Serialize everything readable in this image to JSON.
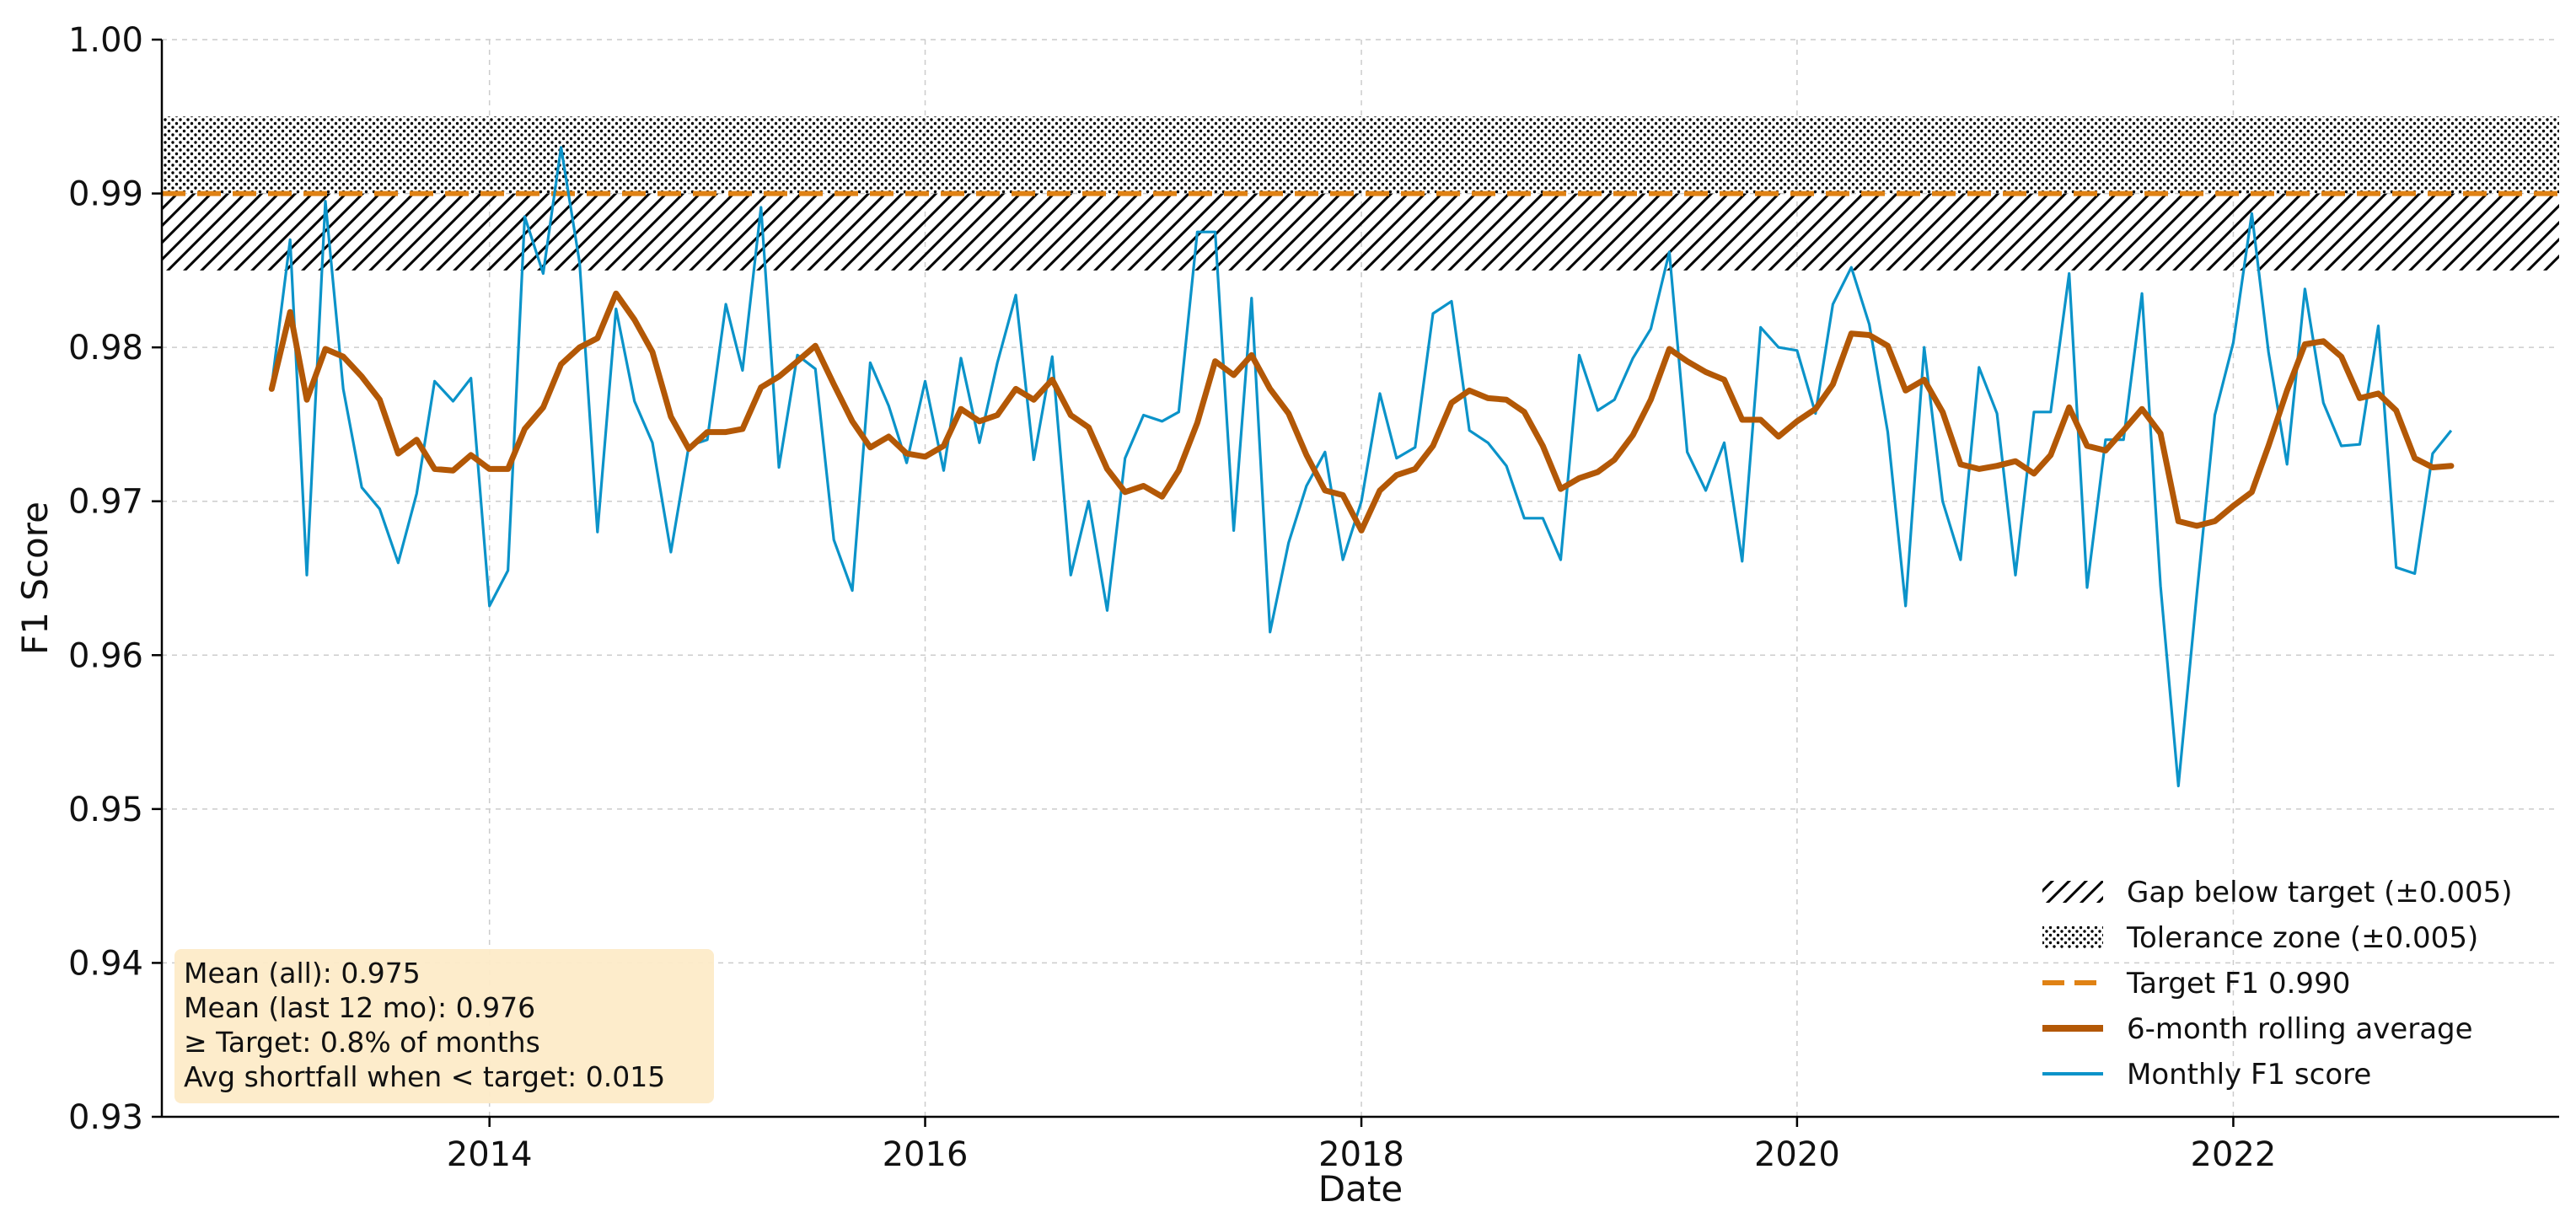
{
  "chart_data": {
    "type": "line",
    "title": "",
    "xlabel": "Date",
    "ylabel": "F1 Score",
    "xlim": [
      "2012-07-01",
      "2023-07-01"
    ],
    "ylim": [
      0.93,
      1.0
    ],
    "x_ticks": [
      {
        "date": "2014-01-01",
        "label": "2014"
      },
      {
        "date": "2016-01-01",
        "label": "2016"
      },
      {
        "date": "2018-01-01",
        "label": "2018"
      },
      {
        "date": "2020-01-01",
        "label": "2020"
      },
      {
        "date": "2022-01-01",
        "label": "2022"
      }
    ],
    "y_ticks": [
      {
        "value": 0.93,
        "label": "0.93"
      },
      {
        "value": 0.94,
        "label": "0.94"
      },
      {
        "value": 0.95,
        "label": "0.95"
      },
      {
        "value": 0.96,
        "label": "0.96"
      },
      {
        "value": 0.97,
        "label": "0.97"
      },
      {
        "value": 0.98,
        "label": "0.98"
      },
      {
        "value": 0.99,
        "label": "0.99"
      },
      {
        "value": 1.0,
        "label": "1.00"
      }
    ],
    "grid": true,
    "legend_position": "lower-right",
    "target": 0.99,
    "tolerance_band": [
      0.99,
      0.995
    ],
    "gap_band": [
      0.985,
      0.99
    ],
    "start_date": "2013-01-01",
    "dates": [
      "2013-01-01",
      "2013-02-01",
      "2013-03-01",
      "2013-04-01",
      "2013-05-01",
      "2013-06-01",
      "2013-07-01",
      "2013-08-01",
      "2013-09-01",
      "2013-10-01",
      "2013-11-01",
      "2013-12-01",
      "2014-01-01",
      "2014-02-01",
      "2014-03-01",
      "2014-04-01",
      "2014-05-01",
      "2014-06-01",
      "2014-07-01",
      "2014-08-01",
      "2014-09-01",
      "2014-10-01",
      "2014-11-01",
      "2014-12-01",
      "2015-01-01",
      "2015-02-01",
      "2015-03-01",
      "2015-04-01",
      "2015-05-01",
      "2015-06-01",
      "2015-07-01",
      "2015-08-01",
      "2015-09-01",
      "2015-10-01",
      "2015-11-01",
      "2015-12-01",
      "2016-01-01",
      "2016-02-01",
      "2016-03-01",
      "2016-04-01",
      "2016-05-01",
      "2016-06-01",
      "2016-07-01",
      "2016-08-01",
      "2016-09-01",
      "2016-10-01",
      "2016-11-01",
      "2016-12-01",
      "2017-01-01",
      "2017-02-01",
      "2017-03-01",
      "2017-04-01",
      "2017-05-01",
      "2017-06-01",
      "2017-07-01",
      "2017-08-01",
      "2017-09-01",
      "2017-10-01",
      "2017-11-01",
      "2017-12-01",
      "2018-01-01",
      "2018-02-01",
      "2018-03-01",
      "2018-04-01",
      "2018-05-01",
      "2018-06-01",
      "2018-07-01",
      "2018-08-01",
      "2018-09-01",
      "2018-10-01",
      "2018-11-01",
      "2018-12-01",
      "2019-01-01",
      "2019-02-01",
      "2019-03-01",
      "2019-04-01",
      "2019-05-01",
      "2019-06-01",
      "2019-07-01",
      "2019-08-01",
      "2019-09-01",
      "2019-10-01",
      "2019-11-01",
      "2019-12-01",
      "2020-01-01",
      "2020-02-01",
      "2020-03-01",
      "2020-04-01",
      "2020-05-01",
      "2020-06-01",
      "2020-07-01",
      "2020-08-01",
      "2020-09-01",
      "2020-10-01",
      "2020-11-01",
      "2020-12-01",
      "2021-01-01",
      "2021-02-01",
      "2021-03-01",
      "2021-04-01",
      "2021-05-01",
      "2021-06-01",
      "2021-07-01",
      "2021-08-01",
      "2021-09-01",
      "2021-10-01",
      "2021-11-01",
      "2021-12-01",
      "2022-01-01",
      "2022-02-01",
      "2022-03-01",
      "2022-04-01",
      "2022-05-01",
      "2022-06-01",
      "2022-07-01",
      "2022-08-01",
      "2022-09-01",
      "2022-10-01",
      "2022-11-01",
      "2022-12-01",
      "2023-01-01"
    ],
    "series": [
      {
        "name": "Monthly F1 score",
        "color": "#0b93c9",
        "values": [
          0.9775,
          0.987,
          0.9652,
          0.9895,
          0.9773,
          0.9709,
          0.9695,
          0.966,
          0.9705,
          0.9778,
          0.9765,
          0.978,
          0.9632,
          0.9655,
          0.9885,
          0.9848,
          0.993,
          0.9855,
          0.968,
          0.9825,
          0.9765,
          0.9738,
          0.9667,
          0.9736,
          0.974,
          0.9828,
          0.9785,
          0.9891,
          0.9722,
          0.9795,
          0.9786,
          0.9675,
          0.9642,
          0.979,
          0.9762,
          0.9725,
          0.9778,
          0.972,
          0.9793,
          0.9738,
          0.979,
          0.9834,
          0.9727,
          0.9794,
          0.9652,
          0.97,
          0.9629,
          0.9728,
          0.9756,
          0.9752,
          0.9758,
          0.9875,
          0.9875,
          0.9681,
          0.9832,
          0.9615,
          0.9673,
          0.971,
          0.9732,
          0.9662,
          0.97,
          0.977,
          0.9728,
          0.9735,
          0.9822,
          0.983,
          0.9746,
          0.9738,
          0.9723,
          0.9689,
          0.9689,
          0.9662,
          0.9795,
          0.9759,
          0.9766,
          0.9793,
          0.9812,
          0.9862,
          0.9732,
          0.9707,
          0.9738,
          0.9661,
          0.9813,
          0.98,
          0.9798,
          0.9757,
          0.9828,
          0.9852,
          0.9815,
          0.9745,
          0.9632,
          0.98,
          0.97,
          0.9662,
          0.9787,
          0.9757,
          0.9652,
          0.9758,
          0.9758,
          0.9848,
          0.9644,
          0.974,
          0.974,
          0.9835,
          0.9645,
          0.9515,
          0.964,
          0.9756,
          0.9803,
          0.9887,
          0.9797,
          0.9724,
          0.9838,
          0.9764,
          0.9736,
          0.9737,
          0.9814,
          0.9657,
          0.9653,
          0.9731,
          0.9746
        ]
      },
      {
        "name": "6-month rolling average",
        "color": "#b35806",
        "values": [
          0.9773,
          0.9823,
          0.9766,
          0.9799,
          0.9794,
          0.9781,
          0.9766,
          0.9731,
          0.974,
          0.9721,
          0.972,
          0.973,
          0.9721,
          0.9721,
          0.9747,
          0.9761,
          0.9789,
          0.98,
          0.9806,
          0.9835,
          0.9818,
          0.9797,
          0.9755,
          0.9734,
          0.9745,
          0.9745,
          0.9747,
          0.9774,
          0.9781,
          0.9791,
          0.9801,
          0.9776,
          0.9752,
          0.9735,
          0.9742,
          0.9731,
          0.9729,
          0.9736,
          0.976,
          0.9752,
          0.9756,
          0.9773,
          0.9766,
          0.9779,
          0.9756,
          0.9748,
          0.9721,
          0.9706,
          0.971,
          0.9703,
          0.972,
          0.9751,
          0.9791,
          0.9782,
          0.9795,
          0.9773,
          0.9757,
          0.973,
          0.9707,
          0.9704,
          0.9681,
          0.9707,
          0.9717,
          0.9721,
          0.9736,
          0.9764,
          0.9772,
          0.9767,
          0.9766,
          0.9758,
          0.9736,
          0.9708,
          0.9715,
          0.9719,
          0.9727,
          0.9743,
          0.9766,
          0.9799,
          0.9791,
          0.9784,
          0.9779,
          0.9753,
          0.9753,
          0.9742,
          0.9752,
          0.976,
          0.9776,
          0.9809,
          0.9808,
          0.9801,
          0.9772,
          0.9779,
          0.9758,
          0.9724,
          0.9721,
          0.9723,
          0.9726,
          0.9718,
          0.973,
          0.9761,
          0.9736,
          0.9733,
          0.9746,
          0.976,
          0.9744,
          0.9687,
          0.9684,
          0.9687,
          0.9697,
          0.9706,
          0.9736,
          0.9772,
          0.9802,
          0.9804,
          0.9794,
          0.9767,
          0.977,
          0.9759,
          0.9728,
          0.9722,
          0.9723
        ]
      }
    ],
    "legend": [
      {
        "key": "gap",
        "label": "Gap below target (±0.005)"
      },
      {
        "key": "tolerance",
        "label": "Tolerance zone (±0.005)"
      },
      {
        "key": "target",
        "label": "Target F1 0.990"
      },
      {
        "key": "rolling",
        "label": "6-month rolling average"
      },
      {
        "key": "monthly",
        "label": "Monthly F1 score"
      }
    ],
    "annotations": {
      "stats": [
        "Mean (all): 0.975",
        "Mean (last 12 mo): 0.976",
        "≥ Target: 0.8% of months",
        "Avg shortfall when < target: 0.015"
      ]
    },
    "colors": {
      "monthly": "#0b93c9",
      "rolling": "#b35806",
      "target": "#e08214",
      "stats_box": "#fdebc8",
      "grid": "#cccccc"
    }
  }
}
